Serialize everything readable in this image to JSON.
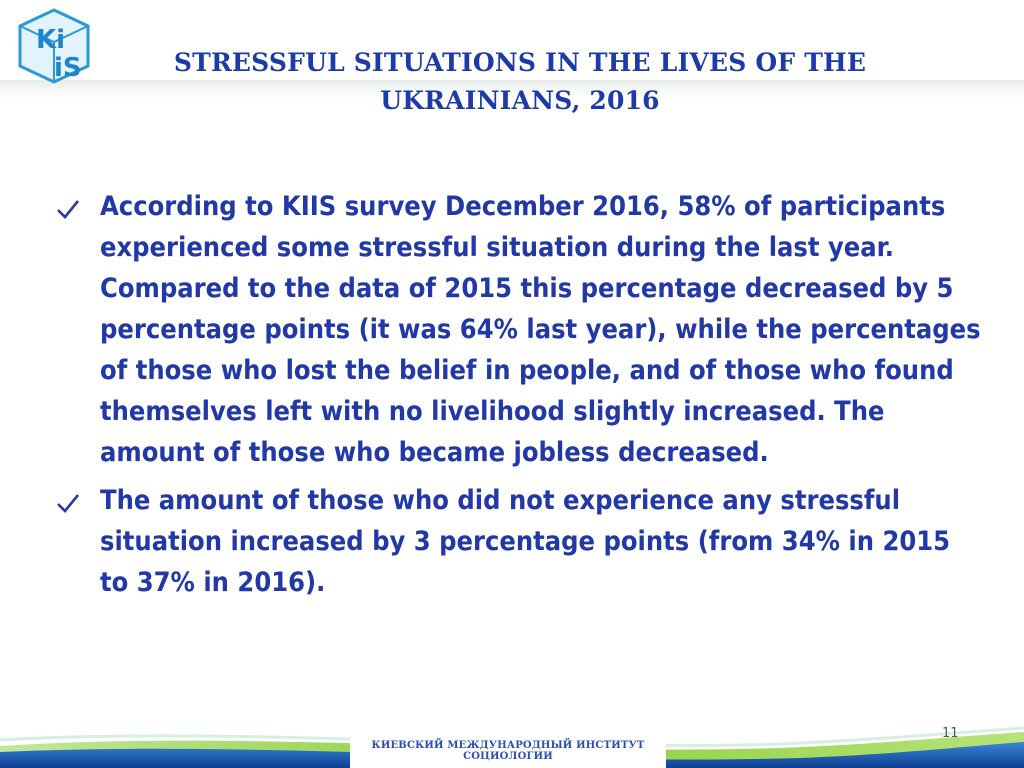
{
  "logo": {
    "text_top": "Ki",
    "text_bottom": "iS"
  },
  "title": {
    "line1": "STRESSFUL SITUATIONS IN THE LIVES OF THE",
    "line2": "UKRAINIANS, 2016"
  },
  "bullets": [
    {
      "icon": "checkmark-icon",
      "text": "According to KIIS survey December 2016, 58% of participants experienced some stressful situation during the last year. Compared to the data of 2015 this percentage decreased by 5 percentage points (it was 64% last year), while the percentages of those who lost the belief in people, and of those who found themselves left with no livelihood slightly increased. The amount of those who became jobless decreased."
    },
    {
      "icon": "checkmark-icon",
      "text": "The amount of those who did not experience any stressful situation increased by 3 percentage points (from 34% in 2015 to 37% in 2016)."
    }
  ],
  "footer": {
    "institute": "КИЕВСКИЙ МЕЖДУНАРОДНЫЙ ИНСТИТУТ СОЦИОЛОГИИ"
  },
  "page_number": "11",
  "colors": {
    "title": "#1c3aa8",
    "text": "#2138a6",
    "wave_blue": "#1f5fb8",
    "wave_green": "#8ccf3a"
  }
}
